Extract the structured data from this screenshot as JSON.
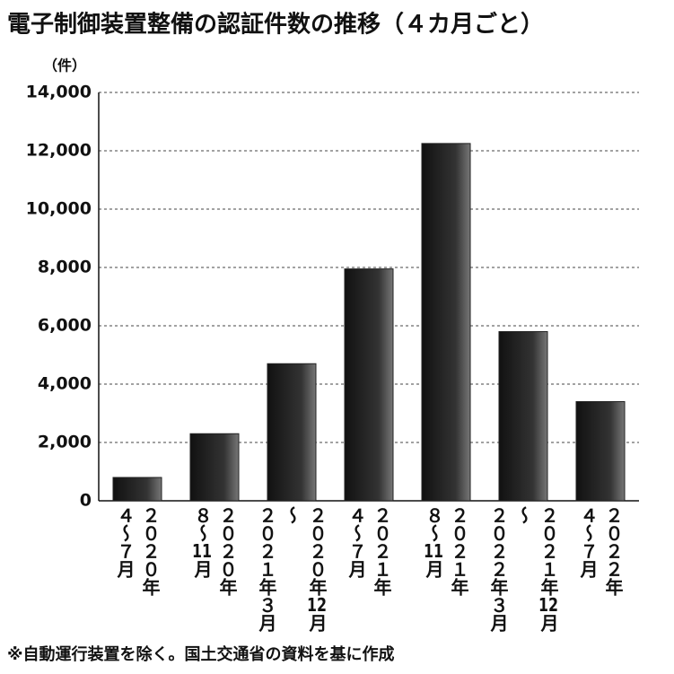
{
  "chart_data": {
    "type": "bar",
    "title": "電子制御装置整備の認証件数の推移（４カ月ごと）",
    "unit_label": "（件）",
    "note": "※自動運行装置を除く。国土交通省の資料を基に作成",
    "categories": [
      "２０２０年 ４～７月",
      "２０２０年 ８～11月",
      "２０２０年12月～ ２０２１年３月",
      "２０２１年 ４～７月",
      "２０２１年 ８～11月",
      "２０２１年12月～ ２０２２年３月",
      "２０２２年 ４～７月"
    ],
    "values": [
      800,
      2300,
      4700,
      7950,
      12250,
      5800,
      3400
    ],
    "color": "#222222",
    "ylim": [
      0,
      14000
    ],
    "yticks": [
      0,
      {
        "value": 2000,
        "label": "2,000"
      },
      {
        "value": 4000,
        "label": "4,000"
      },
      {
        "value": 6000,
        "label": "6,000"
      },
      {
        "value": 8000,
        "label": "8,000"
      },
      {
        "value": 10000,
        "label": "10,000"
      },
      {
        "value": 12000,
        "label": "12,000"
      },
      {
        "value": 14000,
        "label": "14,000"
      }
    ],
    "grid": true
  }
}
